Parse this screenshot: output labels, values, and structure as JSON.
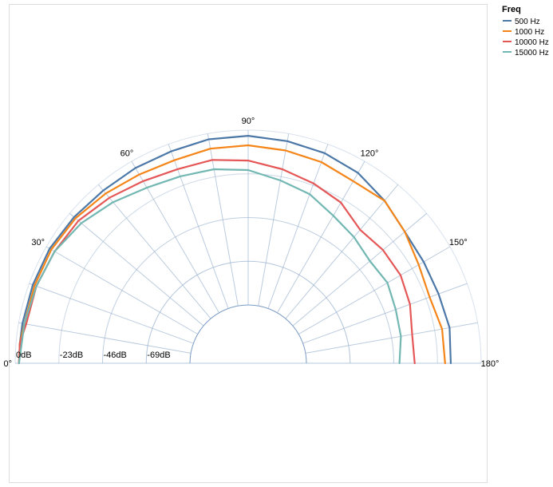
{
  "chart_data": {
    "type": "line",
    "subtype": "polar",
    "legend": {
      "title": "Freq",
      "placement": "top-right"
    },
    "angle_ticks": [
      "0°",
      "30°",
      "60°",
      "90°",
      "120°",
      "150°",
      "180°"
    ],
    "radial_ticks": [
      "0dB",
      "-23dB",
      "-46dB",
      "-69dB"
    ],
    "radial_range_db": [
      -92,
      0
    ],
    "angle_range_deg": [
      0,
      180
    ],
    "angle_grid_step_deg": 10,
    "series": [
      {
        "name": "500 Hz",
        "color": "#4c78a8",
        "angles": [
          0,
          5,
          10,
          20,
          30,
          40,
          50,
          60,
          70,
          80,
          90,
          100,
          110,
          120,
          130,
          140,
          150,
          160,
          170,
          180
        ],
        "values": [
          -2,
          -2,
          -2,
          -2,
          -2,
          -3,
          -4,
          -4,
          -4,
          -3,
          -3,
          -4,
          -5,
          -7,
          -11,
          -15,
          -16,
          -16,
          -15,
          -16
        ]
      },
      {
        "name": "1000 Hz",
        "color": "#f58518",
        "angles": [
          0,
          5,
          10,
          20,
          30,
          40,
          50,
          60,
          70,
          80,
          90,
          100,
          110,
          120,
          130,
          140,
          150,
          160,
          170,
          180
        ],
        "values": [
          -2,
          -2,
          -3,
          -3,
          -3,
          -4,
          -6,
          -8,
          -9,
          -8,
          -8,
          -9,
          -10,
          -12,
          -11,
          -15,
          -19,
          -21,
          -19,
          -19
        ]
      },
      {
        "name": "10000 Hz",
        "color": "#e45756",
        "angles": [
          0,
          5,
          10,
          20,
          30,
          40,
          50,
          60,
          70,
          80,
          90,
          100,
          110,
          120,
          130,
          140,
          150,
          160,
          170,
          180
        ],
        "values": [
          -2,
          -2,
          -4,
          -4,
          -5,
          -6,
          -9,
          -12,
          -14,
          -14,
          -16,
          -19,
          -22,
          -25,
          -31,
          -30,
          -30,
          -32,
          -35,
          -35
        ]
      },
      {
        "name": "15000 Hz",
        "color": "#72b7b2",
        "angles": [
          0,
          5,
          10,
          20,
          30,
          40,
          50,
          60,
          70,
          80,
          90,
          100,
          110,
          120,
          130,
          140,
          150,
          160,
          170,
          180
        ],
        "values": [
          -2,
          -3,
          -3,
          -4,
          -5,
          -8,
          -12,
          -16,
          -18,
          -19,
          -21,
          -25,
          -28,
          -33,
          -36,
          -39,
          -38,
          -40,
          -41,
          -43
        ]
      }
    ]
  }
}
